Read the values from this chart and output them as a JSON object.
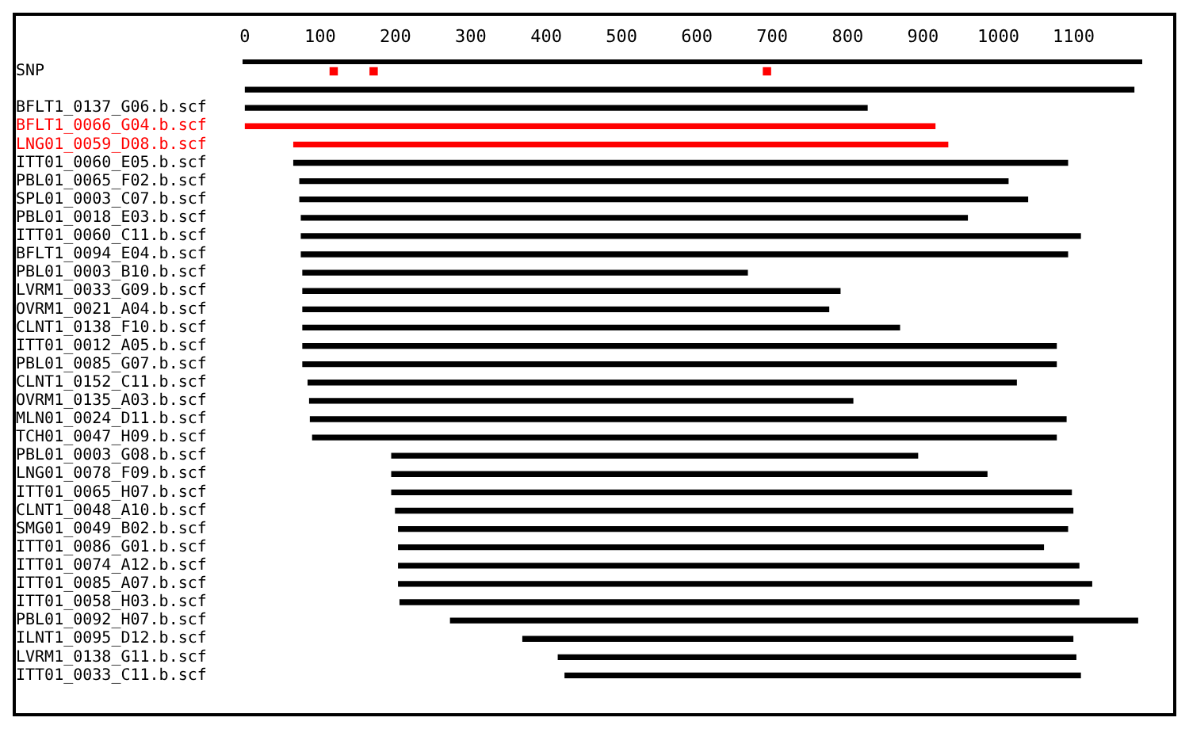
{
  "chart_data": {
    "type": "bar",
    "orientation": "horizontal",
    "categories": [
      "SNP",
      null,
      "BFLT1_0137_G06.b.scf",
      "BFLT1_0066_G04.b.scf",
      "LNG01_0059_D08.b.scf",
      "ITT01_0060_E05.b.scf",
      "PBL01_0065_F02.b.scf",
      "SPL01_0003_C07.b.scf",
      "PBL01_0018_E03.b.scf",
      "ITT01_0060_C11.b.scf",
      "BFLT1_0094_E04.b.scf",
      "PBL01_0003_B10.b.scf",
      "LVRM1_0033_G09.b.scf",
      "OVRM1_0021_A04.b.scf",
      "CLNT1_0138_F10.b.scf",
      "ITT01_0012_A05.b.scf",
      "PBL01_0085_G07.b.scf",
      "CLNT1_0152_C11.b.scf",
      "OVRM1_0135_A03.b.scf",
      "MLN01_0024_D11.b.scf",
      "TCH01_0047_H09.b.scf",
      "PBL01_0003_G08.b.scf",
      "LNG01_0078_F09.b.scf",
      "ITT01_0065_H07.b.scf",
      "CLNT1_0048_A10.b.scf",
      "SMG01_0049_B02.b.scf",
      "ITT01_0086_G01.b.scf",
      "ITT01_0074_A12.b.scf",
      "ITT01_0085_A07.b.scf",
      "ITT01_0058_H03.b.scf",
      "PBL01_0092_H07.b.scf",
      "ILNT1_0095_D12.b.scf",
      "LVRM1_0138_G11.b.scf",
      "ITT01_0033_C11.b.scf"
    ],
    "series": [
      {
        "base": [
          null,
          0,
          0,
          0,
          65,
          65,
          73,
          73,
          75,
          75,
          75,
          77,
          77,
          77,
          77,
          77,
          77,
          84,
          86,
          87,
          90,
          195,
          195,
          195,
          200,
          204,
          204,
          204,
          204,
          206,
          273,
          369,
          416,
          425
        ],
        "values": [
          null,
          1180,
          826,
          916,
          868,
          1027,
          940,
          966,
          884,
          1034,
          1017,
          590,
          713,
          698,
          792,
          1000,
          1000,
          940,
          721,
          1003,
          987,
          698,
          790,
          902,
          899,
          888,
          856,
          903,
          920,
          901,
          912,
          730,
          687,
          684
        ],
        "colors": [
          "#000000",
          "#000000",
          "#000000",
          "#ff0000",
          "#ff0000",
          "#000000",
          "#000000",
          "#000000",
          "#000000",
          "#000000",
          "#000000",
          "#000000",
          "#000000",
          "#000000",
          "#000000",
          "#000000",
          "#000000",
          "#000000",
          "#000000",
          "#000000",
          "#000000",
          "#000000",
          "#000000",
          "#000000",
          "#000000",
          "#000000",
          "#000000",
          "#000000",
          "#000000",
          "#000000",
          "#000000",
          "#000000",
          "#000000",
          "#000000"
        ]
      },
      {
        "type": "scatter",
        "color": "#ff0000",
        "marker": "square",
        "x": [
          "SNP",
          "SNP",
          "SNP"
        ],
        "values": [
          118,
          171,
          693
        ]
      }
    ],
    "xlim": [
      0,
      1190
    ],
    "xticks": [
      0,
      100,
      200,
      300,
      400,
      500,
      600,
      700,
      800,
      900,
      1000,
      1100
    ],
    "grid": false,
    "legend": false
  }
}
